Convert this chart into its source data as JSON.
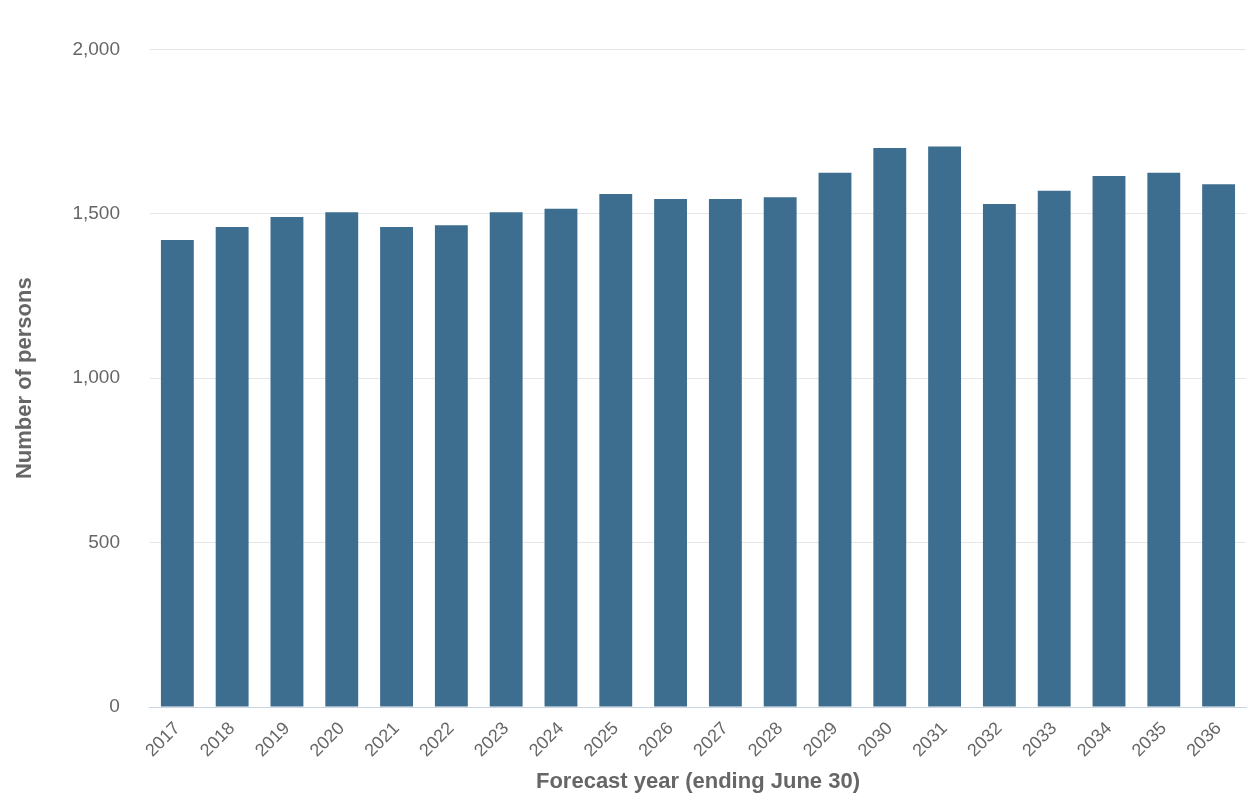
{
  "chart_data": {
    "type": "bar",
    "xlabel": "Forecast year (ending June 30)",
    "ylabel": "Number of persons",
    "categories": [
      "2017",
      "2018",
      "2019",
      "2020",
      "2021",
      "2022",
      "2023",
      "2024",
      "2025",
      "2026",
      "2027",
      "2028",
      "2029",
      "2030",
      "2031",
      "2032",
      "2033",
      "2034",
      "2035",
      "2036"
    ],
    "values": [
      1420,
      1460,
      1490,
      1505,
      1460,
      1465,
      1505,
      1515,
      1560,
      1545,
      1545,
      1550,
      1625,
      1700,
      1705,
      1530,
      1570,
      1615,
      1625,
      1590
    ],
    "color": "#3d6e8f",
    "ylim": [
      0,
      2000
    ],
    "yticks": [
      0,
      500,
      {
        "value": 1000,
        "label": "1,000"
      },
      {
        "value": 1500,
        "label": "1,500"
      },
      {
        "value": 2000,
        "label": "2,000"
      }
    ],
    "grid": "y",
    "legend": false
  }
}
